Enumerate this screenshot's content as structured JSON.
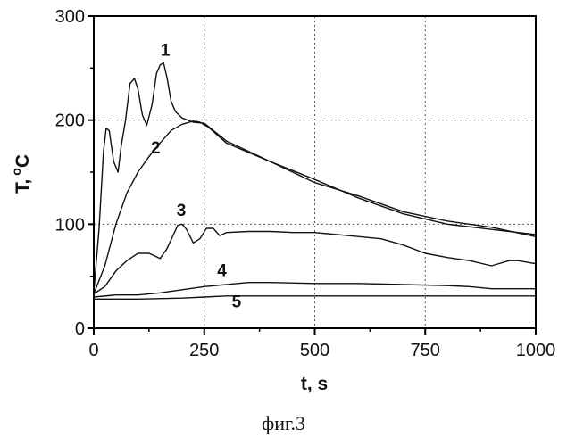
{
  "chart_data": {
    "type": "line",
    "xlabel": "t, s",
    "ylabel_main": "T,",
    "ylabel_sup": "o",
    "ylabel_sub": "C",
    "xlim": [
      0,
      1000
    ],
    "ylim": [
      0,
      300
    ],
    "xticks": [
      "0",
      "250",
      "500",
      "750",
      "1000"
    ],
    "yticks": [
      "0",
      "100",
      "200",
      "300"
    ],
    "xtick_values": [
      0,
      250,
      500,
      750,
      1000
    ],
    "ytick_values": [
      0,
      100,
      200,
      300
    ],
    "grid": true,
    "series": [
      {
        "name": "1",
        "x": [
          0,
          12,
          22,
          28,
          35,
          45,
          55,
          62,
          72,
          82,
          92,
          100,
          110,
          120,
          132,
          142,
          150,
          158,
          166,
          175,
          185,
          200,
          225,
          250,
          300,
          400,
          500,
          600,
          700,
          800,
          900,
          1000
        ],
        "y": [
          35,
          95,
          170,
          192,
          190,
          160,
          150,
          175,
          200,
          235,
          240,
          230,
          205,
          195,
          215,
          245,
          253,
          255,
          240,
          218,
          208,
          202,
          198,
          197,
          180,
          160,
          140,
          127,
          112,
          103,
          97,
          88
        ]
      },
      {
        "name": "2",
        "x": [
          0,
          25,
          50,
          75,
          100,
          125,
          150,
          175,
          200,
          225,
          240,
          260,
          300,
          400,
          500,
          600,
          700,
          800,
          900,
          1000
        ],
        "y": [
          33,
          60,
          100,
          130,
          150,
          165,
          178,
          190,
          196,
          199,
          198,
          193,
          178,
          160,
          143,
          125,
          110,
          100,
          95,
          90
        ]
      },
      {
        "name": "3",
        "x": [
          0,
          25,
          50,
          75,
          100,
          125,
          150,
          165,
          175,
          190,
          200,
          210,
          225,
          240,
          255,
          270,
          285,
          300,
          350,
          400,
          450,
          500,
          550,
          600,
          650,
          700,
          750,
          800,
          850,
          900,
          940,
          960,
          1000
        ],
        "y": [
          33,
          40,
          55,
          65,
          72,
          72,
          67,
          76,
          85,
          99,
          100,
          95,
          82,
          86,
          96,
          96,
          89,
          92,
          93,
          93,
          92,
          92,
          90,
          88,
          86,
          80,
          72,
          68,
          65,
          60,
          65,
          65,
          62
        ]
      },
      {
        "name": "4",
        "x": [
          0,
          50,
          100,
          150,
          200,
          250,
          300,
          350,
          400,
          500,
          600,
          700,
          800,
          850,
          900,
          1000
        ],
        "y": [
          30,
          32,
          32,
          34,
          37,
          40,
          42,
          44,
          44,
          43,
          43,
          42,
          41,
          40,
          38,
          38
        ]
      },
      {
        "name": "5",
        "x": [
          0,
          100,
          200,
          250,
          300,
          400,
          500,
          600,
          700,
          800,
          900,
          1000
        ],
        "y": [
          28,
          28,
          29,
          30,
          31,
          31,
          31,
          31,
          31,
          31,
          31,
          31
        ]
      }
    ],
    "curve_labels": [
      {
        "text": "1",
        "x": 162,
        "y": 262
      },
      {
        "text": "2",
        "x": 140,
        "y": 168
      },
      {
        "text": "3",
        "x": 198,
        "y": 108
      },
      {
        "text": "4",
        "x": 290,
        "y": 50
      },
      {
        "text": "5",
        "x": 323,
        "y": 20
      }
    ]
  },
  "caption": "фиг.3"
}
